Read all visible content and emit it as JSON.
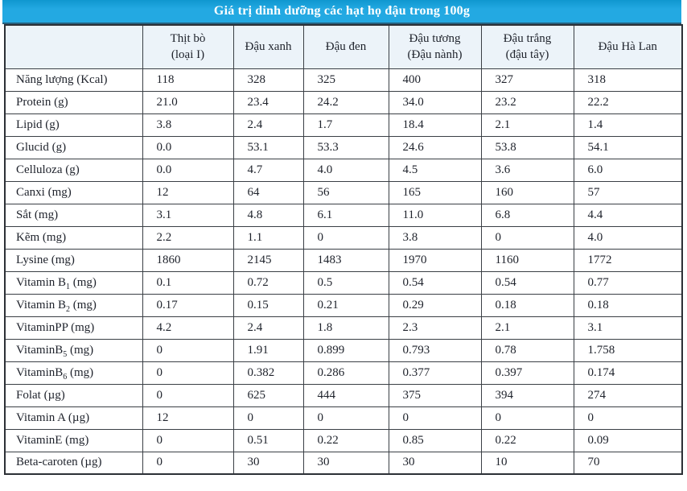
{
  "title": "Giá trị dinh dưỡng các hạt họ đậu trong 100g",
  "table": {
    "columns": [
      {
        "line1": "Thịt bò",
        "line2": "(loại I)"
      },
      {
        "line1": "Đậu xanh",
        "line2": ""
      },
      {
        "line1": "Đậu đen",
        "line2": ""
      },
      {
        "line1": "Đậu tương",
        "line2": "(Đậu nành)"
      },
      {
        "line1": "Đậu trắng",
        "line2": "(đậu tây)"
      },
      {
        "line1": "Đậu Hà Lan",
        "line2": ""
      }
    ],
    "rows": [
      {
        "pre": "Năng lượng (Kcal)",
        "sub": "",
        "post": "",
        "values": [
          "118",
          "328",
          "325",
          "400",
          "327",
          "318"
        ]
      },
      {
        "pre": "Protein (g)",
        "sub": "",
        "post": "",
        "values": [
          "21.0",
          "23.4",
          "24.2",
          "34.0",
          "23.2",
          "22.2"
        ]
      },
      {
        "pre": "Lipid (g)",
        "sub": "",
        "post": "",
        "values": [
          "3.8",
          "2.4",
          "1.7",
          "18.4",
          "2.1",
          "1.4"
        ]
      },
      {
        "pre": "Glucid (g)",
        "sub": "",
        "post": "",
        "values": [
          "0.0",
          "53.1",
          "53.3",
          "24.6",
          "53.8",
          "54.1"
        ]
      },
      {
        "pre": "Celluloza (g)",
        "sub": "",
        "post": "",
        "values": [
          "0.0",
          "4.7",
          "4.0",
          "4.5",
          "3.6",
          "6.0"
        ]
      },
      {
        "pre": "Canxi (mg)",
        "sub": "",
        "post": "",
        "values": [
          "12",
          "64",
          "56",
          "165",
          "160",
          "57"
        ]
      },
      {
        "pre": "Sắt (mg)",
        "sub": "",
        "post": "",
        "values": [
          "3.1",
          "4.8",
          "6.1",
          "11.0",
          "6.8",
          "4.4"
        ]
      },
      {
        "pre": "Kẽm (mg)",
        "sub": "",
        "post": "",
        "values": [
          "2.2",
          "1.1",
          "0",
          "3.8",
          "0",
          "4.0"
        ]
      },
      {
        "pre": "Lysine (mg)",
        "sub": "",
        "post": "",
        "values": [
          "1860",
          "2145",
          "1483",
          "1970",
          "1160",
          "1772"
        ]
      },
      {
        "pre": "Vitamin B",
        "sub": "1",
        "post": " (mg)",
        "values": [
          "0.1",
          "0.72",
          "0.5",
          "0.54",
          "0.54",
          "0.77"
        ]
      },
      {
        "pre": "Vitamin B",
        "sub": "2",
        "post": " (mg)",
        "values": [
          "0.17",
          "0.15",
          "0.21",
          "0.29",
          "0.18",
          "0.18"
        ]
      },
      {
        "pre": "VitaminPP (mg)",
        "sub": "",
        "post": "",
        "values": [
          "4.2",
          "2.4",
          "1.8",
          "2.3",
          "2.1",
          "3.1"
        ]
      },
      {
        "pre": "VitaminB",
        "sub": "5",
        "post": " (mg)",
        "values": [
          "0",
          "1.91",
          "0.899",
          "0.793",
          "0.78",
          "1.758"
        ]
      },
      {
        "pre": "VitaminB",
        "sub": "6",
        "post": " (mg)",
        "values": [
          "0",
          "0.382",
          "0.286",
          "0.377",
          "0.397",
          "0.174"
        ]
      },
      {
        "pre": "Folat (µg)",
        "sub": "",
        "post": "",
        "values": [
          "0",
          "625",
          "444",
          "375",
          "394",
          "274"
        ]
      },
      {
        "pre": "Vitamin A (µg)",
        "sub": "",
        "post": "",
        "values": [
          "12",
          "0",
          "0",
          "0",
          "0",
          "0"
        ]
      },
      {
        "pre": "VitaminE (mg)",
        "sub": "",
        "post": "",
        "values": [
          "0",
          "0.51",
          "0.22",
          "0.85",
          "0.22",
          "0.09"
        ]
      },
      {
        "pre": "Beta-caroten (µg)",
        "sub": "",
        "post": "",
        "values": [
          "0",
          "30",
          "30",
          "30",
          "10",
          "70"
        ]
      }
    ]
  },
  "colors": {
    "title_bar_blue": "#23a9e2",
    "title_bar_border": "#26607e",
    "header_row_bg": "#ecf3f9",
    "grid_line": "#3a3f45",
    "text": "#1e222b",
    "title_text": "#ffffff"
  }
}
